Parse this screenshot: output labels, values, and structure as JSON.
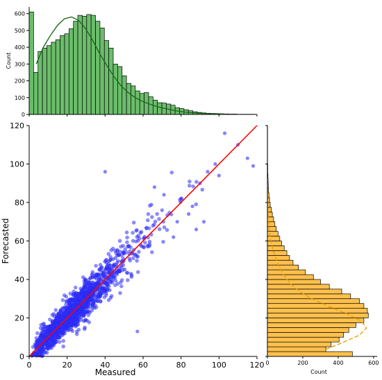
{
  "chart_data": [
    {
      "type": "scatter",
      "name": "measured-vs-forecasted",
      "xlabel": "Measured",
      "ylabel": "Forecasted",
      "xlim": [
        0,
        120
      ],
      "ylim": [
        0,
        120
      ],
      "xticks": [
        0,
        20,
        40,
        60,
        80,
        100,
        120
      ],
      "yticks": [
        0,
        20,
        40,
        60,
        80,
        100,
        120
      ],
      "point_color": "#3030ff",
      "line_color": "#ff0000",
      "reference_line": {
        "x": [
          0,
          120
        ],
        "y": [
          0,
          120
        ]
      },
      "outliers": [
        {
          "x": 40,
          "y": 96
        },
        {
          "x": 110,
          "y": 110
        },
        {
          "x": 103,
          "y": 116
        },
        {
          "x": 115,
          "y": 103
        },
        {
          "x": 118,
          "y": 99
        },
        {
          "x": 57,
          "y": 13
        },
        {
          "x": 90,
          "y": 90
        },
        {
          "x": 94,
          "y": 96
        },
        {
          "x": 98,
          "y": 100
        },
        {
          "x": 86,
          "y": 78
        },
        {
          "x": 92,
          "y": 70
        },
        {
          "x": 100,
          "y": 94
        },
        {
          "x": 80,
          "y": 82
        },
        {
          "x": 84,
          "y": 74
        },
        {
          "x": 71,
          "y": 84
        },
        {
          "x": 76,
          "y": 62
        },
        {
          "x": 88,
          "y": 66
        },
        {
          "x": 66,
          "y": 88
        },
        {
          "x": 70,
          "y": 76
        },
        {
          "x": 78,
          "y": 70
        }
      ],
      "grid": false
    },
    {
      "type": "bar",
      "name": "measured-histogram",
      "orientation": "vertical",
      "ylabel": "Count",
      "ylim": [
        0,
        640
      ],
      "yticks": [
        0,
        100,
        200,
        300,
        400,
        500,
        600
      ],
      "bin_start": 0,
      "bin_width": 2.33,
      "values": [
        610,
        250,
        375,
        395,
        410,
        430,
        445,
        470,
        480,
        510,
        555,
        590,
        585,
        595,
        590,
        555,
        515,
        440,
        395,
        300,
        285,
        230,
        185,
        170,
        140,
        125,
        130,
        105,
        85,
        70,
        68,
        62,
        55,
        40,
        35,
        28,
        22,
        16,
        12,
        9,
        7,
        6,
        5,
        4,
        3,
        2,
        2,
        1,
        1,
        1,
        1
      ],
      "kde": [
        300,
        400,
        470,
        530,
        570,
        580,
        560,
        510,
        440,
        360,
        290,
        225,
        170,
        130,
        100,
        78,
        62,
        48,
        37,
        28,
        20,
        14,
        10,
        7,
        5,
        3,
        2,
        1
      ],
      "color": "#6bbd6b",
      "edge_color": "#000000",
      "line_color": "#1a6b1a"
    },
    {
      "type": "bar",
      "name": "forecasted-histogram",
      "orientation": "horizontal",
      "xlabel": "Count",
      "xlim": [
        0,
        620
      ],
      "xticks": [
        0,
        200,
        400,
        600
      ],
      "bin_start": 0,
      "bin_width": 2.5,
      "values": [
        480,
        330,
        360,
        405,
        430,
        460,
        500,
        545,
        570,
        565,
        545,
        520,
        470,
        420,
        350,
        300,
        260,
        215,
        175,
        145,
        125,
        110,
        95,
        80,
        70,
        60,
        50,
        42,
        35,
        28,
        22,
        16,
        12,
        9,
        6,
        5,
        4,
        3,
        2,
        2,
        1,
        1,
        1,
        1,
        1,
        1,
        1,
        1
      ],
      "kde": [
        330,
        430,
        520,
        560,
        530,
        450,
        350,
        260,
        190,
        140,
        105,
        80,
        60,
        45,
        32,
        22,
        14,
        9,
        6,
        4,
        2,
        1,
        1,
        1,
        1
      ],
      "color": "#ffc04d",
      "edge_color": "#000000",
      "line_color": "#e6a000"
    }
  ]
}
